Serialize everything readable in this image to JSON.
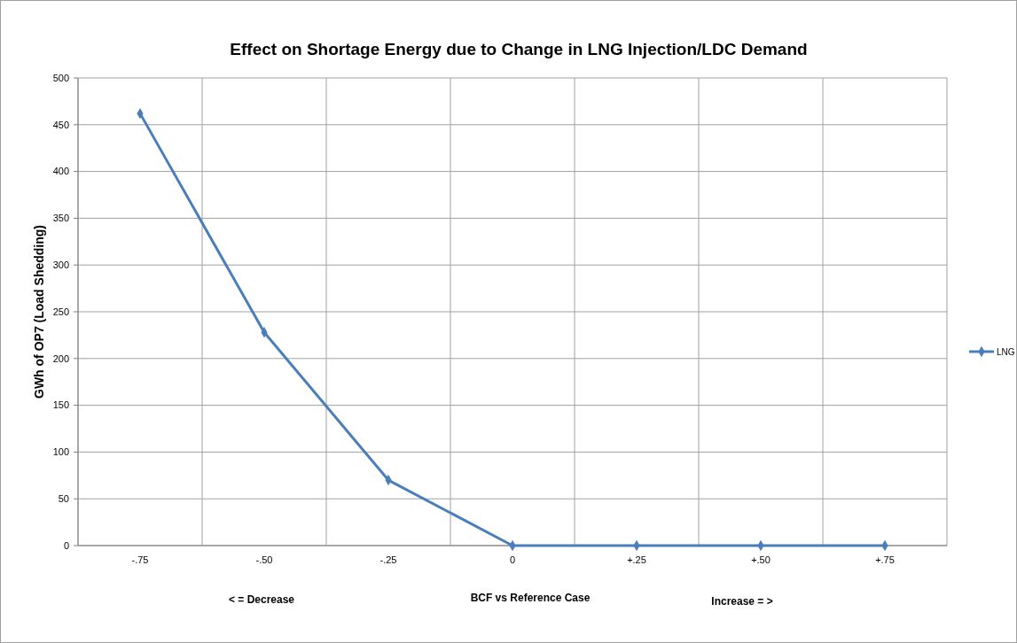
{
  "chart_data": {
    "type": "line",
    "title": "Effect on Shortage Energy due to Change in LNG Injection/LDC Demand",
    "xlabel": "BCF vs Reference Case",
    "ylabel": "GWh of OP7 (Load Shedding)",
    "annotations": [
      "< = Decrease",
      "Increase = >"
    ],
    "categories": [
      "-.75",
      "-.50",
      "-.25",
      "0",
      "+.25",
      "+.50",
      "+.75"
    ],
    "series": [
      {
        "name": "LNG",
        "color": "#4a7ebb",
        "values": [
          462,
          228,
          70,
          0,
          0,
          0,
          0
        ]
      }
    ],
    "ylim": [
      0,
      500
    ],
    "yticks": [
      0,
      50,
      100,
      150,
      200,
      250,
      300,
      350,
      400,
      450,
      500
    ],
    "grid": true,
    "legend": "right",
    "marker": "diamond",
    "line_style": "solid"
  }
}
